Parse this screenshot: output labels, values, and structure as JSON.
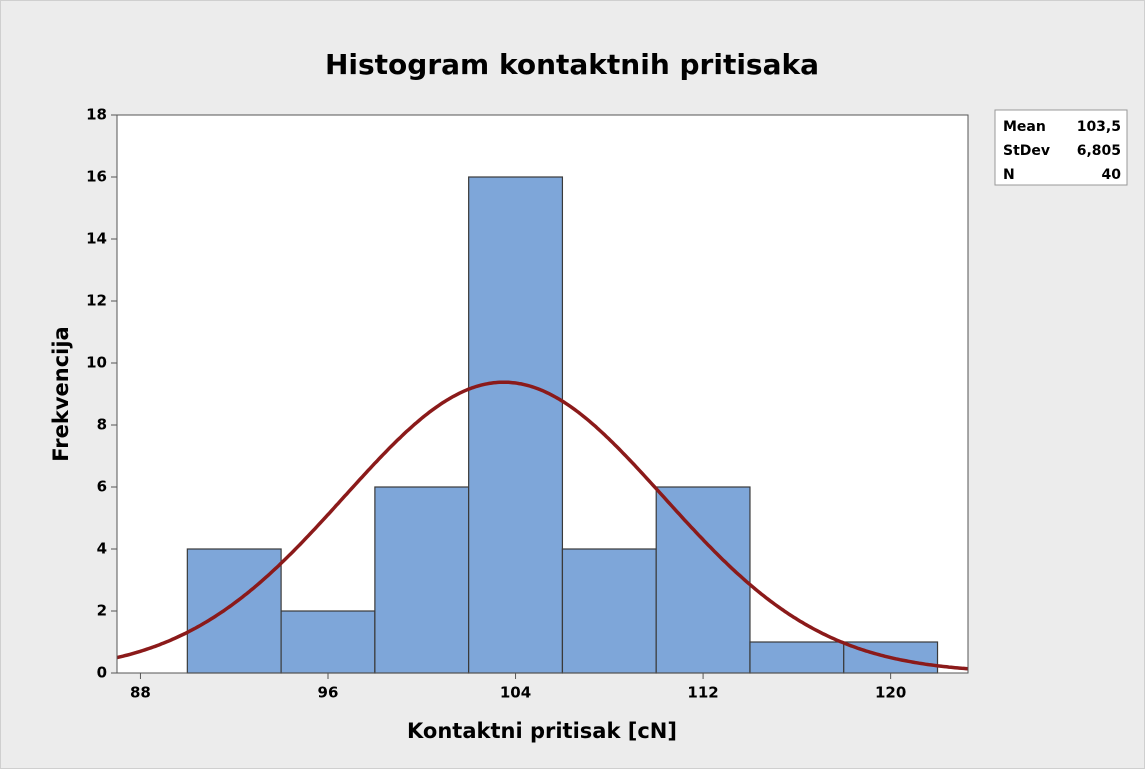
{
  "chart_data": {
    "type": "histogram",
    "title": "Histogram kontaktnih pritisaka",
    "x_label": "Kontaktni pritisak [cN]",
    "y_label": "Frekvencija",
    "bins": [
      90,
      94,
      98,
      102,
      106,
      110,
      114,
      118,
      122
    ],
    "values": [
      4,
      2,
      6,
      16,
      4,
      6,
      1,
      1
    ],
    "color": "#7ea6d9",
    "curve_color": "#8b1a1a",
    "xlim": [
      87,
      123.3
    ],
    "xticks": [
      88,
      96,
      104,
      112,
      120
    ],
    "ylim": [
      0,
      18
    ],
    "yticks": [
      0,
      2,
      4,
      6,
      8,
      10,
      12,
      14,
      16,
      18
    ],
    "grid": false,
    "stats": [
      {
        "name": "Mean",
        "value": {
          "value": 103.5,
          "label": "103,5"
        }
      },
      {
        "name": "StDev",
        "value": {
          "value": 6.805,
          "label": "6,805"
        }
      },
      {
        "name": "N",
        "value": 40
      }
    ]
  }
}
